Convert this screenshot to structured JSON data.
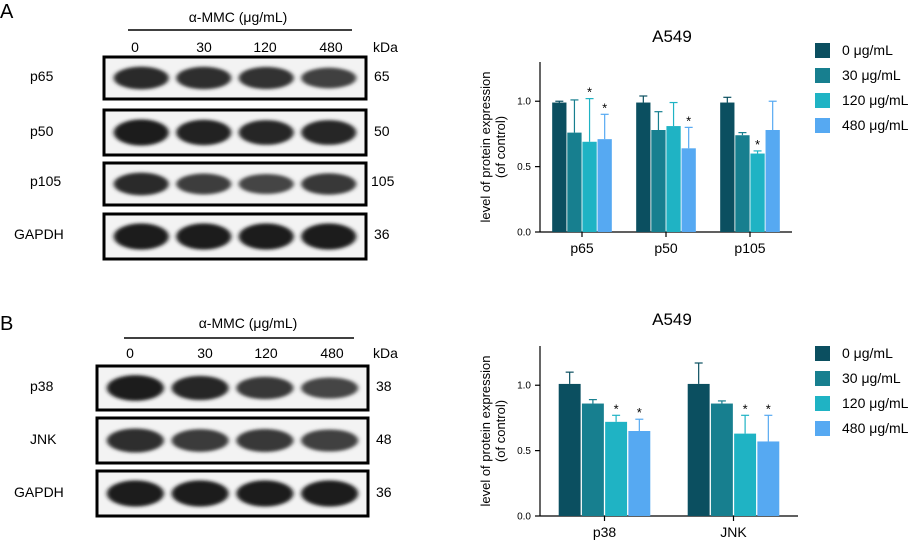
{
  "panels": [
    {
      "letter": "A",
      "blot": {
        "treatment_label": "α-MMC (μg/mL)",
        "doses": [
          "0",
          "30",
          "120",
          "480"
        ],
        "kda_label": "kDa",
        "rows": [
          {
            "protein": "p65",
            "kda": "65",
            "intensity": [
              0.82,
              0.8,
              0.78,
              0.66
            ]
          },
          {
            "protein": "p50",
            "kda": "50",
            "intensity": [
              0.95,
              0.9,
              0.85,
              0.85
            ]
          },
          {
            "protein": "p105",
            "kda": "105",
            "intensity": [
              0.82,
              0.68,
              0.62,
              0.72
            ]
          },
          {
            "protein": "GAPDH",
            "kda": "36",
            "intensity": [
              0.95,
              0.95,
              0.95,
              0.95
            ]
          }
        ]
      }
    },
    {
      "letter": "B",
      "blot": {
        "treatment_label": "α-MMC (μg/mL)",
        "doses": [
          "0",
          "30",
          "120",
          "480"
        ],
        "kda_label": "kDa",
        "rows": [
          {
            "protein": "p38",
            "kda": "38",
            "intensity": [
              0.95,
              0.85,
              0.72,
              0.62
            ]
          },
          {
            "protein": "JNK",
            "kda": "48",
            "intensity": [
              0.8,
              0.7,
              0.72,
              0.66
            ]
          },
          {
            "protein": "GAPDH",
            "kda": "36",
            "intensity": [
              0.95,
              0.95,
              0.95,
              0.95
            ]
          }
        ]
      }
    }
  ],
  "chart_data": [
    {
      "type": "bar",
      "title": "A549",
      "ylabel_line1": "level of protein expression",
      "ylabel_line2": "(of control)",
      "ylim": [
        0,
        1.3
      ],
      "yticks": [
        0.0,
        0.5,
        1.0
      ],
      "ytick_labels": [
        "0.0",
        "0.5",
        "1.0"
      ],
      "categories": [
        "p65",
        "p50",
        "p105"
      ],
      "series": [
        {
          "name": "0 μg/mL",
          "color": "#0b4f60",
          "values": [
            0.99,
            0.99,
            0.99
          ],
          "errors": [
            0.01,
            0.05,
            0.04
          ],
          "significant": [
            false,
            false,
            false
          ]
        },
        {
          "name": "30 μg/mL",
          "color": "#177f8f",
          "values": [
            0.76,
            0.78,
            0.74
          ],
          "errors": [
            0.25,
            0.14,
            0.02
          ],
          "significant": [
            false,
            false,
            false
          ]
        },
        {
          "name": "120 μg/mL",
          "color": "#1fb3c4",
          "values": [
            0.69,
            0.81,
            0.6
          ],
          "errors": [
            0.33,
            0.18,
            0.02
          ],
          "significant": [
            true,
            false,
            true
          ]
        },
        {
          "name": "480 μg/mL",
          "color": "#56a9f2",
          "values": [
            0.71,
            0.64,
            0.78
          ],
          "errors": [
            0.19,
            0.16,
            0.22
          ],
          "significant": [
            true,
            true,
            false
          ]
        }
      ],
      "significance_marker": "*",
      "legend_position": "right"
    },
    {
      "type": "bar",
      "title": "A549",
      "ylabel_line1": "level of protein expression",
      "ylabel_line2": "(of control)",
      "ylim": [
        0,
        1.3
      ],
      "yticks": [
        0.0,
        0.5,
        1.0
      ],
      "ytick_labels": [
        "0.0",
        "0.5",
        "1.0"
      ],
      "categories": [
        "p38",
        "JNK"
      ],
      "series": [
        {
          "name": "0 μg/mL",
          "color": "#0b4f60",
          "values": [
            1.01,
            1.01
          ],
          "errors": [
            0.09,
            0.16
          ],
          "significant": [
            false,
            false
          ]
        },
        {
          "name": "30 μg/mL",
          "color": "#177f8f",
          "values": [
            0.86,
            0.86
          ],
          "errors": [
            0.03,
            0.02
          ],
          "significant": [
            false,
            false
          ]
        },
        {
          "name": "120 μg/mL",
          "color": "#1fb3c4",
          "values": [
            0.72,
            0.63
          ],
          "errors": [
            0.05,
            0.14
          ],
          "significant": [
            true,
            true
          ]
        },
        {
          "name": "480 μg/mL",
          "color": "#56a9f2",
          "values": [
            0.65,
            0.57
          ],
          "errors": [
            0.09,
            0.2
          ],
          "significant": [
            true,
            true
          ]
        }
      ],
      "significance_marker": "*",
      "legend_position": "right"
    }
  ]
}
